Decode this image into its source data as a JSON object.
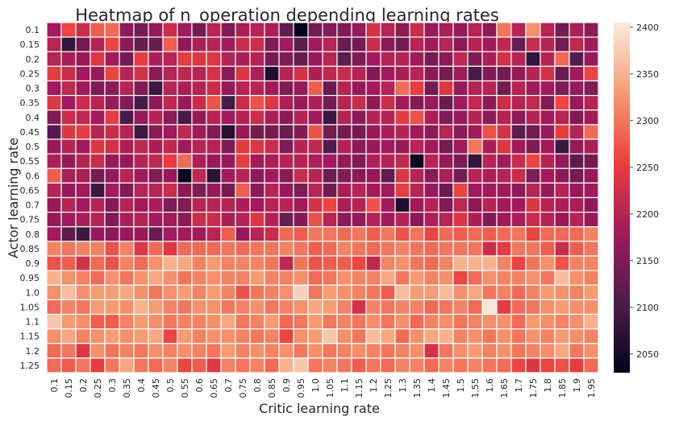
{
  "chart_data": {
    "type": "heatmap",
    "title": "Heatmap of n_operation depending learning rates",
    "xlabel": "Critic learning rate",
    "ylabel": "Actor learning rate",
    "x_categories": [
      "0.1",
      "0.15",
      "0.2",
      "0.25",
      "0.3",
      "0.35",
      "0.4",
      "0.45",
      "0.5",
      "0.55",
      "0.6",
      "0.65",
      "0.7",
      "0.75",
      "0.8",
      "0.85",
      "0.9",
      "0.95",
      "1.0",
      "1.05",
      "1.1",
      "1.15",
      "1.2",
      "1.25",
      "1.3",
      "1.35",
      "1.4",
      "1.45",
      "1.5",
      "1.55",
      "1.6",
      "1.65",
      "1.7",
      "1.75",
      "1.8",
      "1.85",
      "1.9",
      "1.95"
    ],
    "y_categories": [
      "0.1",
      "0.15",
      "0.2",
      "0.25",
      "0.3",
      "0.35",
      "0.4",
      "0.45",
      "0.5",
      "0.55",
      "0.6",
      "0.65",
      "0.7",
      "0.75",
      "0.8",
      "0.85",
      "0.9",
      "0.95",
      "1.0",
      "1.05",
      "1.1",
      "1.15",
      "1.2",
      "1.25"
    ],
    "colorbar": {
      "min": 2030,
      "max": 2405,
      "ticks": [
        2050,
        2100,
        2150,
        2200,
        2250,
        2300,
        2350,
        2400
      ],
      "colormap": "rocket",
      "stops": [
        "#03051a",
        "#4c1d4b",
        "#a11a5b",
        "#e83f3f",
        "#f69c73",
        "#faebdd"
      ]
    },
    "grid_lines": true,
    "values": [
      [
        2180,
        2260,
        2220,
        2280,
        2290,
        2160,
        2140,
        2170,
        2220,
        2180,
        2140,
        2200,
        2150,
        2190,
        2200,
        2190,
        2120,
        2030,
        2140,
        2150,
        2150,
        2170,
        2230,
        2200,
        2160,
        2220,
        2170,
        2190,
        2170,
        2200,
        2160,
        2300,
        2200,
        2320,
        2200,
        2140,
        2190,
        2160
      ],
      [
        2200,
        2080,
        2140,
        2200,
        2260,
        2160,
        2130,
        2130,
        2280,
        2160,
        2190,
        2200,
        2180,
        2220,
        2220,
        2150,
        2180,
        2120,
        2180,
        2200,
        2130,
        2140,
        2220,
        2160,
        2140,
        2200,
        2180,
        2200,
        2160,
        2200,
        2180,
        2210,
        2130,
        2220,
        2200,
        2140,
        2210,
        2180
      ],
      [
        2200,
        2190,
        2170,
        2240,
        2180,
        2140,
        2250,
        2190,
        2200,
        2250,
        2240,
        2240,
        2200,
        2190,
        2200,
        2140,
        2150,
        2130,
        2170,
        2200,
        2120,
        2150,
        2180,
        2200,
        2200,
        2180,
        2140,
        2160,
        2210,
        2150,
        2190,
        2230,
        2200,
        2080,
        2200,
        2290,
        2110,
        2170
      ],
      [
        2250,
        2220,
        2180,
        2170,
        2260,
        2200,
        2230,
        2160,
        2200,
        2210,
        2200,
        2230,
        2160,
        2240,
        2190,
        2060,
        2200,
        2230,
        2190,
        2210,
        2220,
        2200,
        2150,
        2180,
        2190,
        2200,
        2160,
        2140,
        2180,
        2100,
        2150,
        2140,
        2170,
        2200,
        2230,
        2130,
        2180,
        2260
      ],
      [
        2180,
        2210,
        2180,
        2150,
        2160,
        2200,
        2150,
        2090,
        2200,
        2190,
        2200,
        2220,
        2170,
        2200,
        2200,
        2180,
        2150,
        2170,
        2280,
        2130,
        2200,
        2170,
        2180,
        2200,
        2290,
        2250,
        2140,
        2240,
        2170,
        2200,
        2200,
        2140,
        2200,
        2180,
        2180,
        2150,
        2170,
        2150
      ],
      [
        2240,
        2180,
        2220,
        2200,
        2170,
        2150,
        2100,
        2160,
        2210,
        2170,
        2220,
        2270,
        2100,
        2220,
        2270,
        2240,
        2190,
        2170,
        2190,
        2140,
        2200,
        2220,
        2160,
        2220,
        2180,
        2150,
        2170,
        2130,
        2180,
        2210,
        2160,
        2220,
        2200,
        2210,
        2150,
        2260,
        2170,
        2200
      ],
      [
        2150,
        2220,
        2210,
        2180,
        2250,
        2100,
        2170,
        2200,
        2160,
        2100,
        2170,
        2200,
        2180,
        2200,
        2220,
        2190,
        2160,
        2200,
        2180,
        2090,
        2200,
        2160,
        2200,
        2200,
        2250,
        2270,
        2190,
        2150,
        2170,
        2200,
        2160,
        2200,
        2160,
        2200,
        2180,
        2200,
        2150,
        2180
      ],
      [
        2110,
        2240,
        2250,
        2200,
        2220,
        2200,
        2090,
        2160,
        2180,
        2210,
        2180,
        2150,
        2070,
        2170,
        2140,
        2140,
        2130,
        2150,
        2270,
        2140,
        2140,
        2140,
        2170,
        2190,
        2200,
        2180,
        2160,
        2200,
        2160,
        2180,
        2270,
        2230,
        2120,
        2140,
        2170,
        2250,
        2200,
        2290
      ],
      [
        2170,
        2200,
        2180,
        2240,
        2230,
        2190,
        2210,
        2190,
        2210,
        2180,
        2200,
        2200,
        2150,
        2250,
        2240,
        2220,
        2150,
        2200,
        2210,
        2110,
        2200,
        2160,
        2170,
        2180,
        2170,
        2200,
        2180,
        2140,
        2180,
        2300,
        2190,
        2240,
        2180,
        2150,
        2180,
        2090,
        2170,
        2190
      ],
      [
        2190,
        2170,
        2200,
        2220,
        2170,
        2170,
        2200,
        2210,
        2250,
        2290,
        2190,
        2170,
        2170,
        2250,
        2180,
        2190,
        2200,
        2200,
        2190,
        2180,
        2170,
        2150,
        2190,
        2200,
        2210,
        2040,
        2200,
        2170,
        2150,
        2080,
        2200,
        2180,
        2220,
        2260,
        2200,
        2170,
        2120,
        2140
      ],
      [
        2280,
        2190,
        2190,
        2140,
        2170,
        2200,
        2180,
        2150,
        2170,
        2040,
        2210,
        2070,
        2180,
        2200,
        2160,
        2180,
        2160,
        2220,
        2200,
        2130,
        2150,
        2160,
        2170,
        2120,
        2240,
        2200,
        2160,
        2190,
        2140,
        2200,
        2190,
        2200,
        2220,
        2150,
        2180,
        2160,
        2140,
        2170
      ],
      [
        2200,
        2170,
        2180,
        2090,
        2180,
        2150,
        2200,
        2200,
        2220,
        2160,
        2150,
        2170,
        2140,
        2280,
        2160,
        2200,
        2170,
        2150,
        2200,
        2140,
        2190,
        2200,
        2180,
        2180,
        2250,
        2200,
        2170,
        2130,
        2260,
        2180,
        2180,
        2180,
        2160,
        2200,
        2170,
        2200,
        2170,
        2180
      ],
      [
        2170,
        2200,
        2180,
        2200,
        2150,
        2200,
        2180,
        2190,
        2150,
        2150,
        2200,
        2200,
        2200,
        2190,
        2180,
        2200,
        2200,
        2180,
        2230,
        2260,
        2190,
        2200,
        2270,
        2180,
        2060,
        2180,
        2200,
        2150,
        2210,
        2160,
        2200,
        2180,
        2180,
        2240,
        2200,
        2190,
        2190,
        2160
      ],
      [
        2170,
        2180,
        2190,
        2200,
        2150,
        2190,
        2200,
        2180,
        2180,
        2160,
        2220,
        2220,
        2190,
        2200,
        2240,
        2200,
        2130,
        2150,
        2270,
        2200,
        2160,
        2170,
        2200,
        2180,
        2200,
        2160,
        2190,
        2200,
        2240,
        2190,
        2150,
        2180,
        2190,
        2220,
        2200,
        2170,
        2200,
        2170
      ],
      [
        2180,
        2120,
        2090,
        2170,
        2160,
        2170,
        2170,
        2130,
        2180,
        2180,
        2180,
        2200,
        2280,
        2170,
        2200,
        2220,
        2290,
        2280,
        2300,
        2300,
        2290,
        2300,
        2280,
        2300,
        2270,
        2300,
        2260,
        2290,
        2280,
        2290,
        2280,
        2290,
        2300,
        2260,
        2290,
        2290,
        2290,
        2310
      ],
      [
        2310,
        2300,
        2310,
        2310,
        2270,
        2310,
        2240,
        2290,
        2240,
        2290,
        2290,
        2290,
        2300,
        2290,
        2300,
        2300,
        2310,
        2300,
        2280,
        2290,
        2310,
        2300,
        2290,
        2300,
        2310,
        2300,
        2290,
        2300,
        2300,
        2300,
        2220,
        2250,
        2300,
        2300,
        2280,
        2220,
        2280,
        2300
      ],
      [
        2270,
        2280,
        2230,
        2290,
        2270,
        2310,
        2290,
        2320,
        2350,
        2340,
        2310,
        2330,
        2310,
        2310,
        2310,
        2300,
        2210,
        2300,
        2270,
        2280,
        2280,
        2260,
        2210,
        2310,
        2320,
        2300,
        2290,
        2310,
        2350,
        2350,
        2350,
        2310,
        2260,
        2300,
        2320,
        2270,
        2310,
        2310
      ],
      [
        2350,
        2320,
        2310,
        2290,
        2320,
        2300,
        2320,
        2340,
        2320,
        2300,
        2310,
        2320,
        2310,
        2310,
        2330,
        2310,
        2310,
        2320,
        2290,
        2300,
        2320,
        2310,
        2310,
        2340,
        2300,
        2330,
        2310,
        2320,
        2260,
        2290,
        2320,
        2310,
        2310,
        2320,
        2300,
        2360,
        2320,
        2310
      ],
      [
        2320,
        2360,
        2320,
        2330,
        2330,
        2340,
        2320,
        2300,
        2320,
        2330,
        2310,
        2330,
        2310,
        2270,
        2300,
        2310,
        2320,
        2380,
        2300,
        2330,
        2320,
        2310,
        2300,
        2280,
        2360,
        2330,
        2330,
        2360,
        2320,
        2340,
        2300,
        2310,
        2290,
        2310,
        2330,
        2320,
        2310,
        2330
      ],
      [
        2290,
        2310,
        2300,
        2330,
        2330,
        2320,
        2350,
        2330,
        2310,
        2300,
        2320,
        2320,
        2300,
        2310,
        2320,
        2300,
        2310,
        2320,
        2340,
        2330,
        2310,
        2230,
        2310,
        2300,
        2310,
        2310,
        2290,
        2300,
        2310,
        2290,
        2400,
        2250,
        2290,
        2300,
        2320,
        2330,
        2320,
        2320
      ],
      [
        2370,
        2330,
        2320,
        2280,
        2280,
        2310,
        2330,
        2320,
        2300,
        2310,
        2310,
        2320,
        2340,
        2300,
        2310,
        2330,
        2290,
        2300,
        2330,
        2300,
        2310,
        2300,
        2320,
        2300,
        2320,
        2290,
        2310,
        2320,
        2300,
        2310,
        2320,
        2320,
        2290,
        2330,
        2320,
        2310,
        2320,
        2350
      ],
      [
        2320,
        2340,
        2310,
        2320,
        2330,
        2320,
        2330,
        2340,
        2260,
        2330,
        2310,
        2320,
        2320,
        2310,
        2300,
        2310,
        2260,
        2320,
        2330,
        2370,
        2320,
        2300,
        2360,
        2340,
        2290,
        2320,
        2340,
        2350,
        2310,
        2320,
        2300,
        2320,
        2300,
        2320,
        2310,
        2330,
        2320,
        2310
      ],
      [
        2290,
        2300,
        2240,
        2320,
        2300,
        2310,
        2300,
        2320,
        2310,
        2320,
        2310,
        2300,
        2330,
        2310,
        2320,
        2310,
        2320,
        2300,
        2320,
        2300,
        2310,
        2320,
        2310,
        2300,
        2310,
        2320,
        2230,
        2300,
        2320,
        2330,
        2310,
        2320,
        2300,
        2310,
        2320,
        2340,
        2300,
        2320
      ],
      [
        2290,
        2280,
        2300,
        2250,
        2300,
        2340,
        2300,
        2290,
        2310,
        2260,
        2280,
        2240,
        2310,
        2300,
        2310,
        2290,
        2350,
        2370,
        2300,
        2310,
        2300,
        2280,
        2300,
        2290,
        2310,
        2310,
        2290,
        2310,
        2300,
        2310,
        2300,
        2290,
        2260,
        2240,
        2260,
        2270,
        2250,
        2290
      ]
    ]
  }
}
